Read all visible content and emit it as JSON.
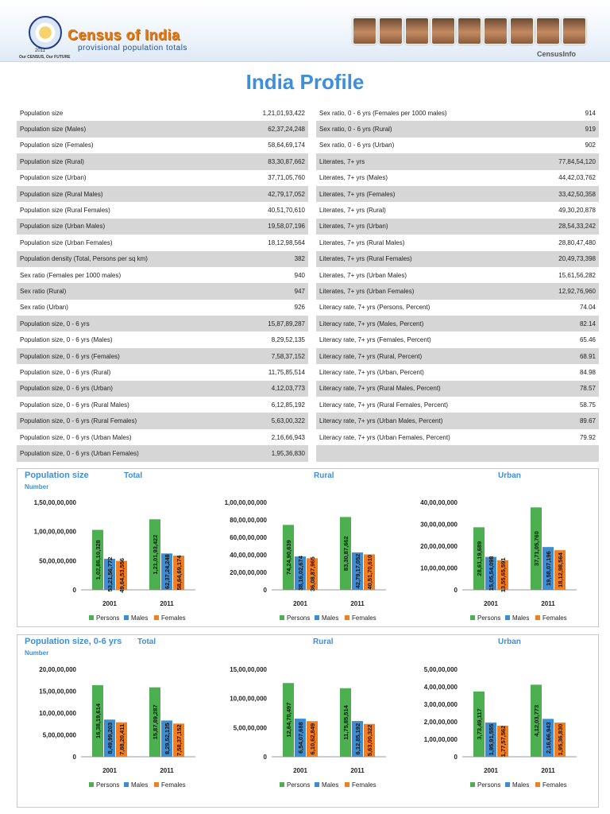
{
  "header": {
    "brand": "Census of India",
    "subtitle": "provisional population totals",
    "year": "2011",
    "tagline": "Our CENSUS, Our FUTURE",
    "right_label": "CensusInfo"
  },
  "title": "India Profile",
  "table_left": [
    [
      "Population size",
      "1,21,01,93,422"
    ],
    [
      "Population size (Males)",
      "62,37,24,248"
    ],
    [
      "Population size (Females)",
      "58,64,69,174"
    ],
    [
      "Population size (Rural)",
      "83,30,87,662"
    ],
    [
      "Population size (Urban)",
      "37,71,05,760"
    ],
    [
      "Population size (Rural Males)",
      "42,79,17,052"
    ],
    [
      "Population size (Rural Females)",
      "40,51,70,610"
    ],
    [
      "Population size (Urban Males)",
      "19,58,07,196"
    ],
    [
      "Population size (Urban Females)",
      "18,12,98,564"
    ],
    [
      "Population density (Total, Persons per sq km)",
      "382"
    ],
    [
      "Sex ratio (Females per 1000 males)",
      "940"
    ],
    [
      "Sex ratio (Rural)",
      "947"
    ],
    [
      "Sex ratio (Urban)",
      "926"
    ],
    [
      "Population size, 0 - 6 yrs",
      "15,87,89,287"
    ],
    [
      "Population size, 0 - 6 yrs (Males)",
      "8,29,52,135"
    ],
    [
      "Population size, 0 - 6 yrs (Females)",
      "7,58,37,152"
    ],
    [
      "Population size, 0 - 6 yrs (Rural)",
      "11,75,85,514"
    ],
    [
      "Population size, 0 - 6 yrs (Urban)",
      "4,12,03,773"
    ],
    [
      "Population size, 0 - 6 yrs (Rural Males)",
      "6,12,85,192"
    ],
    [
      "Population size, 0 - 6 yrs (Rural Females)",
      "5,63,00,322"
    ],
    [
      "Population size, 0 - 6 yrs (Urban Males)",
      "2,16,66,943"
    ],
    [
      "Population size, 0 - 6 yrs (Urban Females)",
      "1,95,36,830"
    ]
  ],
  "table_right": [
    [
      "Sex ratio, 0 - 6 yrs (Females per 1000 males)",
      "914"
    ],
    [
      "Sex ratio, 0 - 6 yrs (Rural)",
      "919"
    ],
    [
      "Sex ratio, 0 - 6 yrs (Urban)",
      "902"
    ],
    [
      "Literates, 7+ yrs",
      "77,84,54,120"
    ],
    [
      "Literates, 7+ yrs (Males)",
      "44,42,03,762"
    ],
    [
      "Literates, 7+ yrs (Females)",
      "33,42,50,358"
    ],
    [
      "Literates, 7+ yrs (Rural)",
      "49,30,20,878"
    ],
    [
      "Literates, 7+ yrs (Urban)",
      "28,54,33,242"
    ],
    [
      "Literates, 7+ yrs (Rural Males)",
      "28,80,47,480"
    ],
    [
      "Literates, 7+ yrs (Rural Females)",
      "20,49,73,398"
    ],
    [
      "Literates, 7+ yrs (Urban Males)",
      "15,61,56,282"
    ],
    [
      "Literates, 7+ yrs (Urban Females)",
      "12,92,76,960"
    ],
    [
      "Literacy rate, 7+ yrs (Persons, Percent)",
      "74.04"
    ],
    [
      "Literacy rate, 7+ yrs (Males, Percent)",
      "82.14"
    ],
    [
      "Literacy rate, 7+ yrs (Females, Percent)",
      "65.46"
    ],
    [
      "Literacy rate, 7+ yrs (Rural, Percent)",
      "68.91"
    ],
    [
      "Literacy rate, 7+ yrs (Urban, Percent)",
      "84.98"
    ],
    [
      "Literacy rate, 7+ yrs (Rural Males, Percent)",
      "78.57"
    ],
    [
      "Literacy rate, 7+ yrs (Rural Females, Percent)",
      "58.75"
    ],
    [
      "Literacy rate, 7+ yrs (Urban Males, Percent)",
      "89.67"
    ],
    [
      "Literacy rate, 7+ yrs (Urban Females, Percent)",
      "79.92"
    ],
    [
      "",
      ""
    ]
  ],
  "panels": [
    {
      "title": "Population size",
      "subtitle": "Number"
    },
    {
      "title": "Population size, 0-6 yrs",
      "subtitle": "Number"
    }
  ],
  "colors": {
    "Persons": "#4caf50",
    "Males": "#3b8ed4",
    "Females": "#f07f22"
  },
  "chart_data": [
    {
      "type": "bar",
      "title": "Total",
      "categories": [
        "2001",
        "2011"
      ],
      "ylim": [
        0,
        1500000000
      ],
      "yticks": [
        "0",
        "50,00,00,000",
        "1,00,00,00,000",
        "1,50,00,00,000"
      ],
      "series": [
        {
          "name": "Persons",
          "values": [
            1028610328,
            1210193422
          ],
          "labels": [
            "1,02,86,10,328",
            "1,21,01,93,422"
          ]
        },
        {
          "name": "Males",
          "values": [
            532156772,
            623724248
          ],
          "labels": [
            "53,21,56,772",
            "62,37,24,248"
          ]
        },
        {
          "name": "Females",
          "values": [
            496453556,
            586469174
          ],
          "labels": [
            "49,64,53,556",
            "58,64,69,174"
          ]
        }
      ]
    },
    {
      "type": "bar",
      "title": "Rural",
      "categories": [
        "2001",
        "2011"
      ],
      "ylim": [
        0,
        1000000000
      ],
      "yticks": [
        "0",
        "20,00,00,000",
        "40,00,00,000",
        "60,00,00,000",
        "80,00,00,000",
        "1,00,00,00,000"
      ],
      "series": [
        {
          "name": "Persons",
          "values": [
            742490639,
            833087662
          ],
          "labels": [
            "74,24,90,639",
            "83,30,87,662"
          ]
        },
        {
          "name": "Males",
          "values": [
            381602674,
            427917052
          ],
          "labels": [
            "38,16,02,674",
            "42,79,17,052"
          ]
        },
        {
          "name": "Females",
          "values": [
            360887965,
            405170610
          ],
          "labels": [
            "36,08,87,965",
            "40,51,70,610"
          ]
        }
      ]
    },
    {
      "type": "bar",
      "title": "Urban",
      "categories": [
        "2001",
        "2011"
      ],
      "ylim": [
        0,
        400000000
      ],
      "yticks": [
        "0",
        "10,00,00,000",
        "20,00,00,000",
        "30,00,00,000",
        "40,00,00,000"
      ],
      "series": [
        {
          "name": "Persons",
          "values": [
            286119689,
            377105760
          ],
          "labels": [
            "28,61,19,689",
            "37,71,05,760"
          ]
        },
        {
          "name": "Males",
          "values": [
            150554098,
            195807196
          ],
          "labels": [
            "15,05,54,098",
            "19,58,07,196"
          ]
        },
        {
          "name": "Females",
          "values": [
            135565591,
            181298564
          ],
          "labels": [
            "13,55,65,591",
            "18,12,98,564"
          ]
        }
      ]
    },
    {
      "type": "bar",
      "title": "Total",
      "categories": [
        "2001",
        "2011"
      ],
      "ylim": [
        0,
        200000000
      ],
      "yticks": [
        "0",
        "5,00,00,000",
        "10,00,00,000",
        "15,00,00,000",
        "20,00,00,000"
      ],
      "series": [
        {
          "name": "Persons",
          "values": [
            163819614,
            158789287
          ],
          "labels": [
            "16,38,19,614",
            "15,87,89,287"
          ]
        },
        {
          "name": "Males",
          "values": [
            84999203,
            82952135
          ],
          "labels": [
            "8,49,99,203",
            "8,29,52,135"
          ]
        },
        {
          "name": "Females",
          "values": [
            78820411,
            75837152
          ],
          "labels": [
            "7,88,20,411",
            "7,58,37,152"
          ]
        }
      ]
    },
    {
      "type": "bar",
      "title": "Rural",
      "categories": [
        "2001",
        "2011"
      ],
      "ylim": [
        0,
        150000000
      ],
      "yticks": [
        "0",
        "5,00,00,000",
        "10,00,00,000",
        "15,00,00,000"
      ],
      "series": [
        {
          "name": "Persons",
          "values": [
            126470497,
            117585514
          ],
          "labels": [
            "12,64,70,497",
            "11,75,85,514"
          ]
        },
        {
          "name": "Males",
          "values": [
            65407688,
            61285192
          ],
          "labels": [
            "6,54,07,688",
            "6,12,85,192"
          ]
        },
        {
          "name": "Females",
          "values": [
            61062849,
            56300322
          ],
          "labels": [
            "6,10,62,849",
            "5,63,00,322"
          ]
        }
      ]
    },
    {
      "type": "bar",
      "title": "Urban",
      "categories": [
        "2001",
        "2011"
      ],
      "ylim": [
        0,
        50000000
      ],
      "yticks": [
        "0",
        "1,00,00,000",
        "2,00,00,000",
        "3,00,00,000",
        "4,00,00,000",
        "5,00,00,000"
      ],
      "series": [
        {
          "name": "Persons",
          "values": [
            37349117,
            41203773
          ],
          "labels": [
            "3,73,49,117",
            "4,12,03,773"
          ]
        },
        {
          "name": "Males",
          "values": [
            19591555,
            21666943
          ],
          "labels": [
            "1,95,91,555",
            "2,16,66,943"
          ]
        },
        {
          "name": "Females",
          "values": [
            17757562,
            19536830
          ],
          "labels": [
            "1,77,57,562",
            "1,95,36,830"
          ]
        }
      ]
    }
  ]
}
